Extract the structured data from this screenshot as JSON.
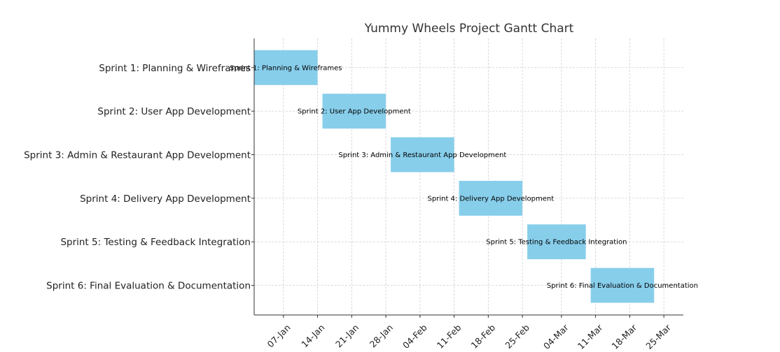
{
  "chart_data": {
    "type": "gantt",
    "title": "Yummy Wheels Project Gantt Chart",
    "xlabel": "",
    "ylabel": "",
    "year": 2024,
    "xlim": [
      "2024-01-01",
      "2024-03-29"
    ],
    "x_ticks": [
      {
        "date": "2024-01-07",
        "label": "07-Jan"
      },
      {
        "date": "2024-01-14",
        "label": "14-Jan"
      },
      {
        "date": "2024-01-21",
        "label": "21-Jan"
      },
      {
        "date": "2024-01-28",
        "label": "28-Jan"
      },
      {
        "date": "2024-02-04",
        "label": "04-Feb"
      },
      {
        "date": "2024-02-11",
        "label": "11-Feb"
      },
      {
        "date": "2024-02-18",
        "label": "18-Feb"
      },
      {
        "date": "2024-02-25",
        "label": "25-Feb"
      },
      {
        "date": "2024-03-04",
        "label": "04-Mar"
      },
      {
        "date": "2024-03-11",
        "label": "11-Mar"
      },
      {
        "date": "2024-03-18",
        "label": "18-Mar"
      },
      {
        "date": "2024-03-25",
        "label": "25-Mar"
      }
    ],
    "grid": true,
    "bar_color": "#87ceeb",
    "tasks": [
      {
        "name": "Sprint 1: Planning & Wireframes",
        "start": "2024-01-01",
        "end": "2024-01-14"
      },
      {
        "name": "Sprint 2: User App Development",
        "start": "2024-01-15",
        "end": "2024-01-28"
      },
      {
        "name": "Sprint 3: Admin & Restaurant App Development",
        "start": "2024-01-29",
        "end": "2024-02-11"
      },
      {
        "name": "Sprint 4: Delivery App Development",
        "start": "2024-02-12",
        "end": "2024-02-25"
      },
      {
        "name": "Sprint 5: Testing & Feedback Integration",
        "start": "2024-02-26",
        "end": "2024-03-09"
      },
      {
        "name": "Sprint 6: Final Evaluation & Documentation",
        "start": "2024-03-10",
        "end": "2024-03-23"
      }
    ]
  }
}
